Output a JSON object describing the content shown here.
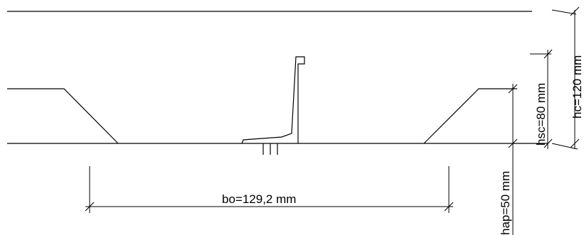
{
  "labels": {
    "bo": "bo=129,2 mm",
    "hsc": "hsc=80 mm",
    "hc": "hc=120 mm",
    "hap": "hap=50 mm"
  }
}
